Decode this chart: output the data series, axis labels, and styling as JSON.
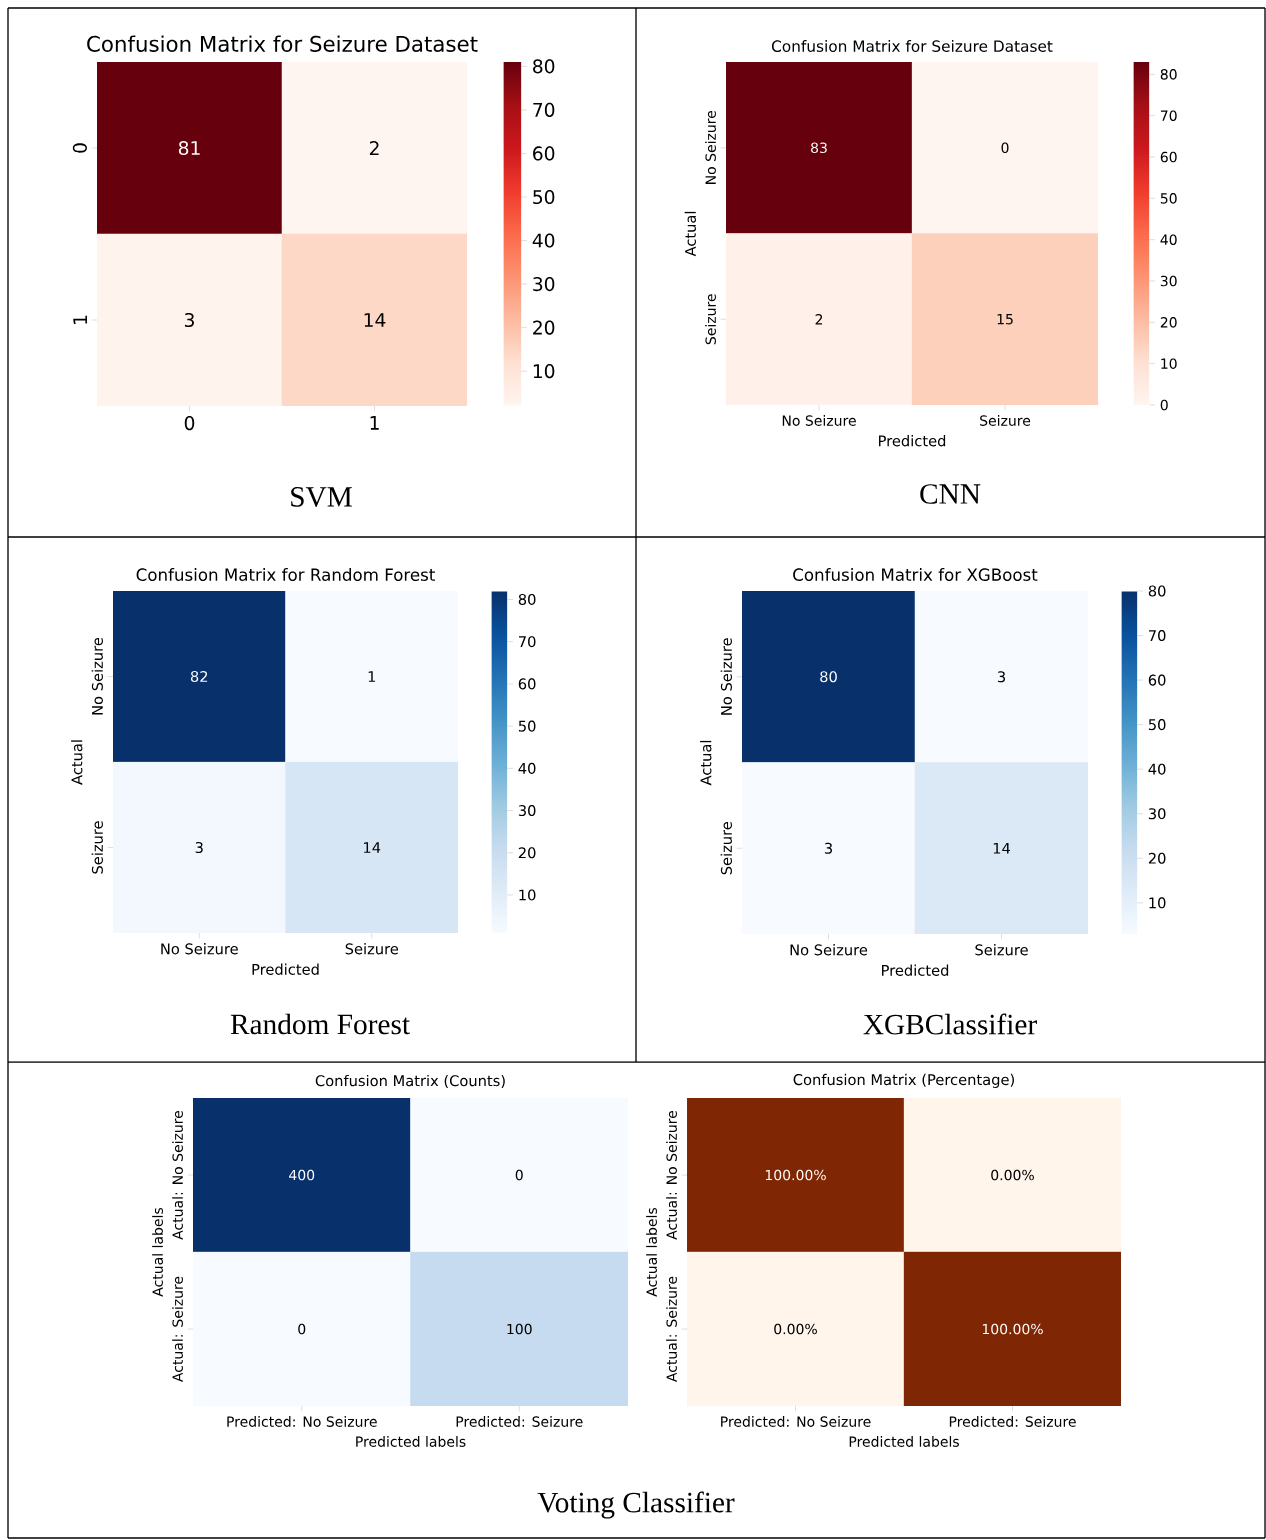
{
  "chart_data": [
    {
      "type": "heatmap",
      "title": "Confusion Matrix for Seizure Dataset",
      "categories": [
        "0",
        "1"
      ],
      "y_categories": [
        "0",
        "1"
      ],
      "cells": [
        [
          81,
          2
        ],
        [
          3,
          14
        ]
      ],
      "data_labels": true,
      "color": "#67000d",
      "clim": [
        2,
        81
      ],
      "cticks": [
        10,
        20,
        30,
        40,
        50,
        60,
        70,
        80
      ],
      "annotations": [
        "SVM"
      ]
    },
    {
      "type": "heatmap",
      "title": "Confusion Matrix for Seizure Dataset",
      "categories": [
        "No Seizure",
        "Seizure"
      ],
      "y_categories": [
        "No Seizure",
        "Seizure"
      ],
      "xlabel": "Predicted",
      "ylabel": "Actual",
      "cells": [
        [
          83,
          0
        ],
        [
          2,
          15
        ]
      ],
      "data_labels": true,
      "color": "#67000d",
      "clim": [
        0,
        83
      ],
      "cticks": [
        0,
        10,
        20,
        30,
        40,
        50,
        60,
        70,
        80
      ],
      "annotations": [
        "CNN"
      ]
    },
    {
      "type": "heatmap",
      "title": "Confusion Matrix for Random Forest",
      "categories": [
        "No Seizure",
        "Seizure"
      ],
      "y_categories": [
        "No Seizure",
        "Seizure"
      ],
      "xlabel": "Predicted",
      "ylabel": "Actual",
      "cells": [
        [
          82,
          1
        ],
        [
          3,
          14
        ]
      ],
      "data_labels": true,
      "color": "#08306b",
      "clim": [
        1,
        82
      ],
      "cticks": [
        10,
        20,
        30,
        40,
        50,
        60,
        70,
        80
      ],
      "annotations": [
        "Random Forest"
      ]
    },
    {
      "type": "heatmap",
      "title": "Confusion Matrix for XGBoost",
      "categories": [
        "No Seizure",
        "Seizure"
      ],
      "y_categories": [
        "No Seizure",
        "Seizure"
      ],
      "xlabel": "Predicted",
      "ylabel": "Actual",
      "cells": [
        [
          80,
          3
        ],
        [
          3,
          14
        ]
      ],
      "data_labels": true,
      "color": "#08306b",
      "clim": [
        3,
        80
      ],
      "cticks": [
        10,
        20,
        30,
        40,
        50,
        60,
        70,
        80
      ],
      "annotations": [
        "XGBClassifier"
      ]
    },
    {
      "type": "heatmap",
      "title": "Confusion Matrix (Counts)",
      "categories": [
        "Predicted: No Seizure",
        "Predicted: Seizure"
      ],
      "y_categories": [
        "Actual: No Seizure",
        "Actual: Seizure"
      ],
      "xlabel": "Predicted labels",
      "ylabel": "Actual labels",
      "cells": [
        [
          400,
          0
        ],
        [
          0,
          100
        ]
      ],
      "data_labels": true,
      "color": "#08306b",
      "annotations": [
        "Voting Classifier"
      ]
    },
    {
      "type": "heatmap",
      "title": "Confusion Matrix (Percentage)",
      "categories": [
        "Predicted: No Seizure",
        "Predicted: Seizure"
      ],
      "y_categories": [
        "Actual: No Seizure",
        "Actual: Seizure"
      ],
      "xlabel": "Predicted labels",
      "ylabel": "Actual labels",
      "cells": [
        [
          100,
          0
        ],
        [
          0,
          100
        ]
      ],
      "cell_labels": [
        [
          "100.00%",
          "0.00%"
        ],
        [
          "0.00%",
          "100.00%"
        ]
      ],
      "color": "#7f2704"
    }
  ]
}
